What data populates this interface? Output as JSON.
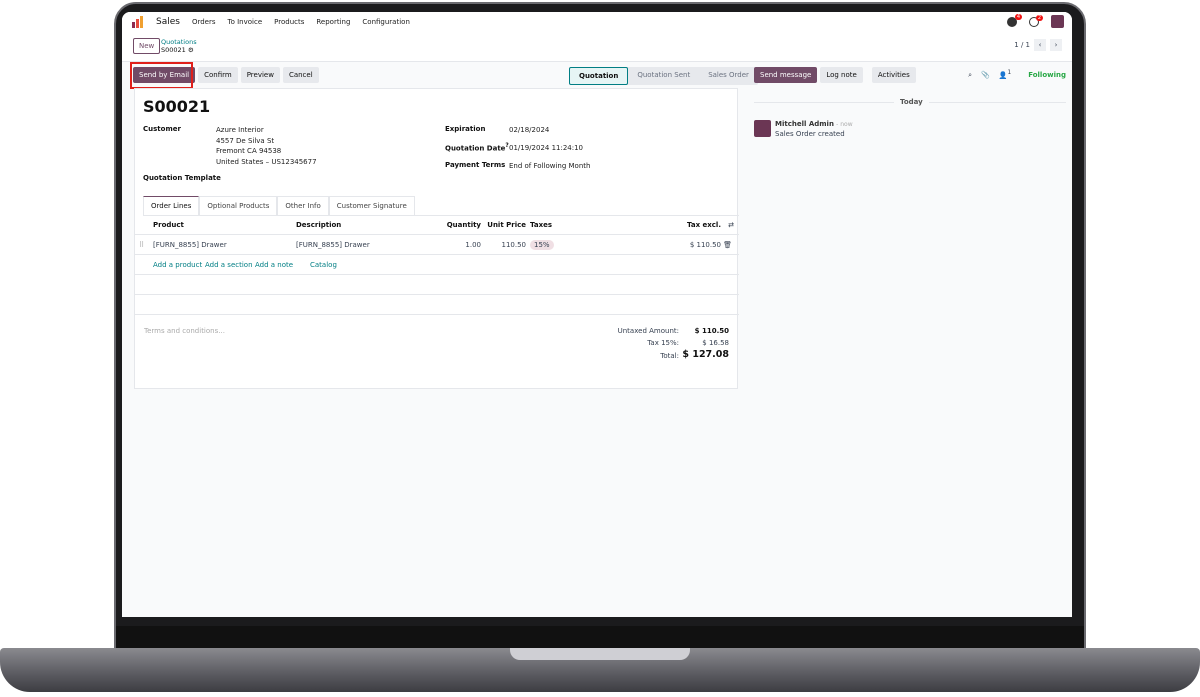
{
  "topbar": {
    "app": "Sales",
    "menu": [
      "Orders",
      "To Invoice",
      "Products",
      "Reporting",
      "Configuration"
    ],
    "messages_badge": "4",
    "activities_badge": "2"
  },
  "control": {
    "new": "New",
    "breadcrumb_parent": "Quotations",
    "breadcrumb_current": "S00021",
    "pager": "1 / 1"
  },
  "actions": {
    "send_email": "Send by Email",
    "confirm": "Confirm",
    "preview": "Preview",
    "cancel": "Cancel"
  },
  "status": [
    "Quotation",
    "Quotation Sent",
    "Sales Order"
  ],
  "form": {
    "name": "S00021",
    "customer_label": "Customer",
    "customer": [
      "Azure Interior",
      "4557 De Silva St",
      "Fremont CA 94538",
      "United States – US12345677"
    ],
    "template_label": "Quotation Template",
    "expiration_label": "Expiration",
    "expiration": "02/18/2024",
    "date_label": "Quotation Date",
    "date_help": "?",
    "date": "01/19/2024 11:24:10",
    "terms_label": "Payment Terms",
    "terms": "End of Following Month"
  },
  "tabs": [
    "Order Lines",
    "Optional Products",
    "Other Info",
    "Customer Signature"
  ],
  "table": {
    "headers": [
      "Product",
      "Description",
      "Quantity",
      "Unit Price",
      "Taxes",
      "Tax excl."
    ],
    "rows": [
      {
        "product": "[FURN_8855] Drawer",
        "description": "[FURN_8855] Drawer",
        "quantity": "1.00",
        "price": "110.50",
        "tax": "15%",
        "subtotal": "$ 110.50"
      }
    ],
    "add": [
      "Add a product",
      "Add a section",
      "Add a note",
      "Catalog"
    ]
  },
  "terms_placeholder": "Terms and conditions...",
  "totals": {
    "untaxed_label": "Untaxed Amount:",
    "untaxed": "$ 110.50",
    "tax_label": "Tax 15%:",
    "tax": "$ 16.58",
    "total_label": "Total:",
    "total": "$ 127.08"
  },
  "chatter": {
    "send": "Send message",
    "log": "Log note",
    "activities": "Activities",
    "followers": "1",
    "following": "Following",
    "today": "Today",
    "author": "Mitchell Admin",
    "time": "- now",
    "message": "Sales Order created"
  },
  "colors": {
    "primary": "#714b67",
    "link": "#017e84",
    "highlight": "#e0201b",
    "following": "#28a745"
  }
}
